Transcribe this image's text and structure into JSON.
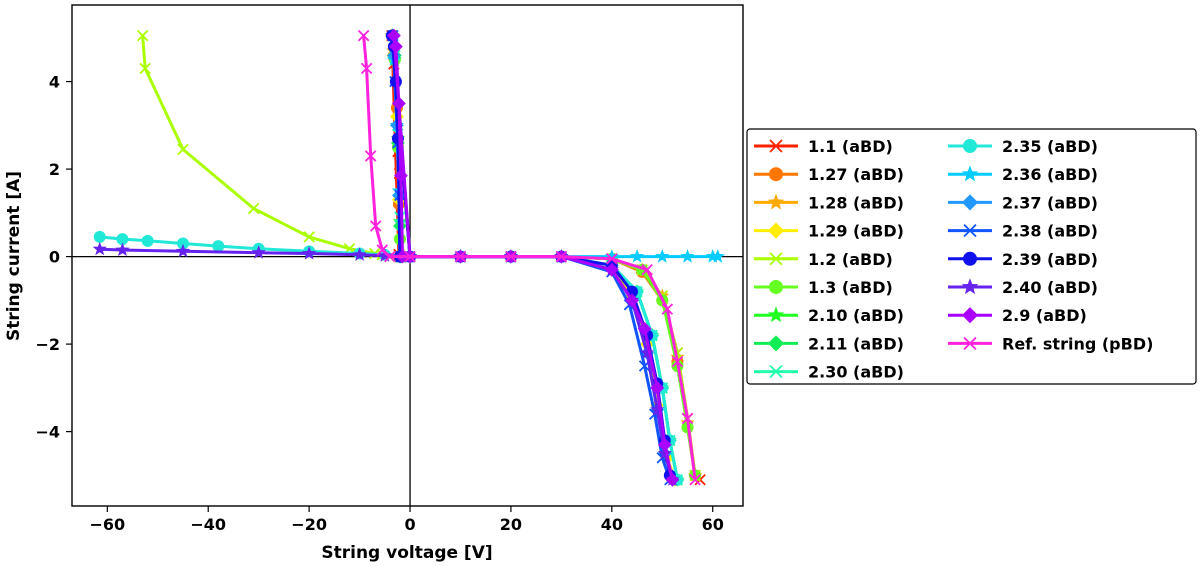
{
  "chart_data": {
    "type": "line",
    "title": "",
    "xlabel": "String voltage [V]",
    "ylabel": "String current [A]",
    "xlim": [
      -67,
      66
    ],
    "ylim": [
      -5.7,
      5.75
    ],
    "x_ticks": [
      -60,
      -40,
      -20,
      0,
      20,
      40,
      60
    ],
    "y_ticks": [
      -4,
      -2,
      0,
      2,
      4
    ],
    "grid": false,
    "zero_lines": true,
    "legend_position": "right, outside plot, two columns",
    "series": [
      {
        "name": "1.1 (aBD)",
        "color": "#ff2200",
        "marker": "x",
        "x": [
          -2,
          -2.1,
          -2.4,
          -3.2,
          -3.6,
          -2.2,
          0,
          10,
          20,
          30,
          40,
          46,
          50,
          53,
          55,
          56.5,
          57.5
        ],
        "y": [
          0,
          1.9,
          2.4,
          4.4,
          5.05,
          0.05,
          0,
          0,
          0,
          0,
          -0.05,
          -0.3,
          -0.9,
          -2.2,
          -3.7,
          -5.0,
          -5.1
        ]
      },
      {
        "name": "1.27 (aBD)",
        "color": "#ff7700",
        "marker": "o",
        "x": [
          -2,
          -2.2,
          -2.6,
          -3.2,
          -3.5,
          0,
          10,
          20,
          30,
          40,
          46,
          50,
          53,
          55,
          56.5
        ],
        "y": [
          0,
          1.2,
          3.4,
          4.6,
          5.05,
          0,
          0,
          0,
          0,
          -0.05,
          -0.35,
          -1.0,
          -2.4,
          -3.9,
          -5.0
        ]
      },
      {
        "name": "1.28 (aBD)",
        "color": "#ffaa00",
        "marker": "*",
        "x": [
          -2,
          -2.2,
          -2.6,
          -3.3,
          -3.6,
          0,
          10,
          20,
          30,
          40,
          46,
          50,
          53,
          55,
          56.5
        ],
        "y": [
          0,
          1.5,
          3.0,
          4.7,
          5.05,
          0,
          0,
          0,
          0,
          -0.05,
          -0.3,
          -0.9,
          -2.3,
          -3.8,
          -5.0
        ]
      },
      {
        "name": "1.29 (aBD)",
        "color": "#ffee00",
        "marker": "D",
        "x": [
          -2,
          -2.2,
          -2.6,
          -3.3,
          -3.6,
          0,
          10,
          20,
          30,
          40,
          44,
          47,
          49,
          51,
          52.5
        ],
        "y": [
          0,
          1.3,
          3.2,
          4.6,
          5.05,
          0,
          0,
          0,
          0,
          -0.3,
          -0.9,
          -2.0,
          -3.4,
          -4.6,
          -5.1
        ]
      },
      {
        "name": "1.2 (aBD)",
        "color": "#aaff00",
        "marker": "x",
        "x": [
          -53,
          -52.5,
          -45,
          -31,
          -20,
          -12,
          -7,
          -5.5,
          -4,
          0,
          10,
          20,
          30,
          40,
          46,
          50,
          53,
          55,
          56.5
        ],
        "y": [
          5.05,
          4.3,
          2.45,
          1.1,
          0.45,
          0.18,
          0.07,
          0.04,
          0,
          0,
          0,
          0,
          0,
          -0.05,
          -0.3,
          -0.9,
          -2.2,
          -3.7,
          -5.0
        ]
      },
      {
        "name": "1.3 (aBD)",
        "color": "#66ff22",
        "marker": "o",
        "x": [
          -1.8,
          -2.0,
          -2.4,
          -3.0,
          -3.4,
          0,
          10,
          20,
          30,
          40,
          46,
          50,
          53,
          55,
          56.5
        ],
        "y": [
          0,
          0.4,
          2.5,
          4.5,
          5.05,
          0,
          0,
          0,
          0,
          -0.05,
          -0.3,
          -1.0,
          -2.5,
          -3.9,
          -5.0
        ]
      },
      {
        "name": "2.10 (aBD)",
        "color": "#22ff22",
        "marker": "*",
        "x": [
          -1.8,
          -2.0,
          -2.4,
          -3.0,
          -3.4,
          0,
          10,
          20,
          30,
          40,
          45,
          48,
          50,
          51.5,
          53
        ],
        "y": [
          0,
          0.8,
          2.7,
          4.5,
          5.05,
          0,
          0,
          0,
          0,
          -0.2,
          -0.8,
          -1.8,
          -3.0,
          -4.2,
          -5.1
        ]
      },
      {
        "name": "2.11 (aBD)",
        "color": "#11ee55",
        "marker": "D",
        "x": [
          -1.8,
          -2.0,
          -2.4,
          -3.0,
          -3.4,
          0,
          10,
          20,
          30,
          40,
          45,
          48,
          50,
          51.5,
          53
        ],
        "y": [
          0,
          0.7,
          2.6,
          4.6,
          5.05,
          0,
          0,
          0,
          0,
          -0.2,
          -0.8,
          -1.8,
          -3.0,
          -4.2,
          -5.1
        ]
      },
      {
        "name": "2.30 (aBD)",
        "color": "#22ffaa",
        "marker": "x",
        "x": [
          -1.8,
          -2.0,
          -2.4,
          -3.0,
          -3.4,
          0,
          10,
          20,
          30,
          40,
          45,
          48,
          50,
          51.5,
          53
        ],
        "y": [
          0,
          0.9,
          2.8,
          4.6,
          5.05,
          0,
          0,
          0,
          0,
          -0.2,
          -0.8,
          -1.8,
          -3.0,
          -4.2,
          -5.1
        ]
      },
      {
        "name": "2.35 (aBD)",
        "color": "#22e8d8",
        "marker": "o",
        "x": [
          -61.5,
          -57,
          -52,
          -45,
          -38,
          -30,
          -20,
          -10,
          -5,
          0,
          10,
          20,
          30,
          40,
          45,
          48,
          50,
          51.5,
          53
        ],
        "y": [
          0.45,
          0.4,
          0.36,
          0.3,
          0.24,
          0.18,
          0.12,
          0.07,
          0.04,
          0,
          0,
          0,
          0,
          -0.2,
          -0.8,
          -1.8,
          -3.0,
          -4.2,
          -5.1
        ]
      },
      {
        "name": "2.36 (aBD)",
        "color": "#00ccff",
        "marker": "*",
        "x": [
          -2,
          -2.2,
          -2.6,
          -3.2,
          -3.5,
          0,
          10,
          20,
          30,
          40,
          45,
          50,
          55,
          60,
          61
        ],
        "y": [
          0,
          1.5,
          3.0,
          4.5,
          5.05,
          0,
          0,
          0,
          0,
          0,
          0,
          0,
          0,
          0,
          0
        ]
      },
      {
        "name": "2.37 (aBD)",
        "color": "#2299ff",
        "marker": "D",
        "x": [
          -2,
          -2.2,
          -2.6,
          -3.2,
          -3.5,
          0,
          10,
          20,
          30,
          40,
          44,
          47,
          49,
          50.5,
          52
        ],
        "y": [
          0,
          1.4,
          3.0,
          4.6,
          5.05,
          0,
          0,
          0,
          0,
          -0.3,
          -1.0,
          -2.2,
          -3.5,
          -4.5,
          -5.1
        ]
      },
      {
        "name": "2.38 (aBD)",
        "color": "#1155ff",
        "marker": "x",
        "x": [
          -1.8,
          -2.0,
          -2.4,
          -3.0,
          -3.4,
          0,
          10,
          20,
          30,
          40,
          43.5,
          46.5,
          48.5,
          50,
          51.5
        ],
        "y": [
          0,
          1.4,
          2.6,
          4.0,
          5.05,
          0,
          0,
          0,
          0,
          -0.35,
          -1.1,
          -2.5,
          -3.6,
          -4.6,
          -5.1
        ]
      },
      {
        "name": "2.39 (aBD)",
        "color": "#1111ee",
        "marker": "o",
        "x": [
          -2,
          -2.4,
          -2.8,
          -3.2,
          -3.6,
          0,
          10,
          20,
          30,
          40,
          44,
          47,
          49,
          50.5,
          51.5
        ],
        "y": [
          0,
          2.7,
          4.0,
          4.8,
          5.05,
          0,
          0,
          0,
          0,
          -0.2,
          -0.8,
          -1.8,
          -2.9,
          -4.2,
          -5.0
        ]
      },
      {
        "name": "2.40 (aBD)",
        "color": "#6622ee",
        "marker": "*",
        "x": [
          -61.5,
          -57,
          -45,
          -30,
          -20,
          -10,
          -5,
          0,
          10,
          20,
          30,
          40,
          44,
          47,
          49,
          50.5,
          52
        ],
        "y": [
          0.17,
          0.15,
          0.12,
          0.09,
          0.07,
          0.04,
          0.02,
          0,
          0,
          0,
          0,
          -0.3,
          -1.0,
          -2.2,
          -3.5,
          -4.5,
          -5.1
        ]
      },
      {
        "name": "2.9 (aBD)",
        "color": "#aa00ff",
        "marker": "D",
        "x": [
          -1.5,
          -1.8,
          -2.2,
          -2.8,
          -3.2,
          0,
          10,
          20,
          30,
          40,
          44,
          46.5,
          49,
          50.5,
          52
        ],
        "y": [
          0,
          1.85,
          3.5,
          4.8,
          5.05,
          0,
          0,
          0,
          0,
          -0.3,
          -1.0,
          -1.65,
          -3.0,
          -4.3,
          -5.1
        ]
      },
      {
        "name": "Ref. string (pBD)",
        "color": "#ff22dd",
        "marker": "x",
        "x": [
          -9.2,
          -8.6,
          -7.8,
          -6.8,
          -5.5,
          -4,
          0,
          10,
          20,
          30,
          40,
          47,
          51,
          53,
          55,
          56.5
        ],
        "y": [
          5.05,
          4.3,
          2.3,
          0.7,
          0.15,
          0,
          0,
          0,
          0,
          0,
          -0.05,
          -0.3,
          -1.2,
          -2.4,
          -3.7,
          -5.1
        ]
      }
    ]
  }
}
